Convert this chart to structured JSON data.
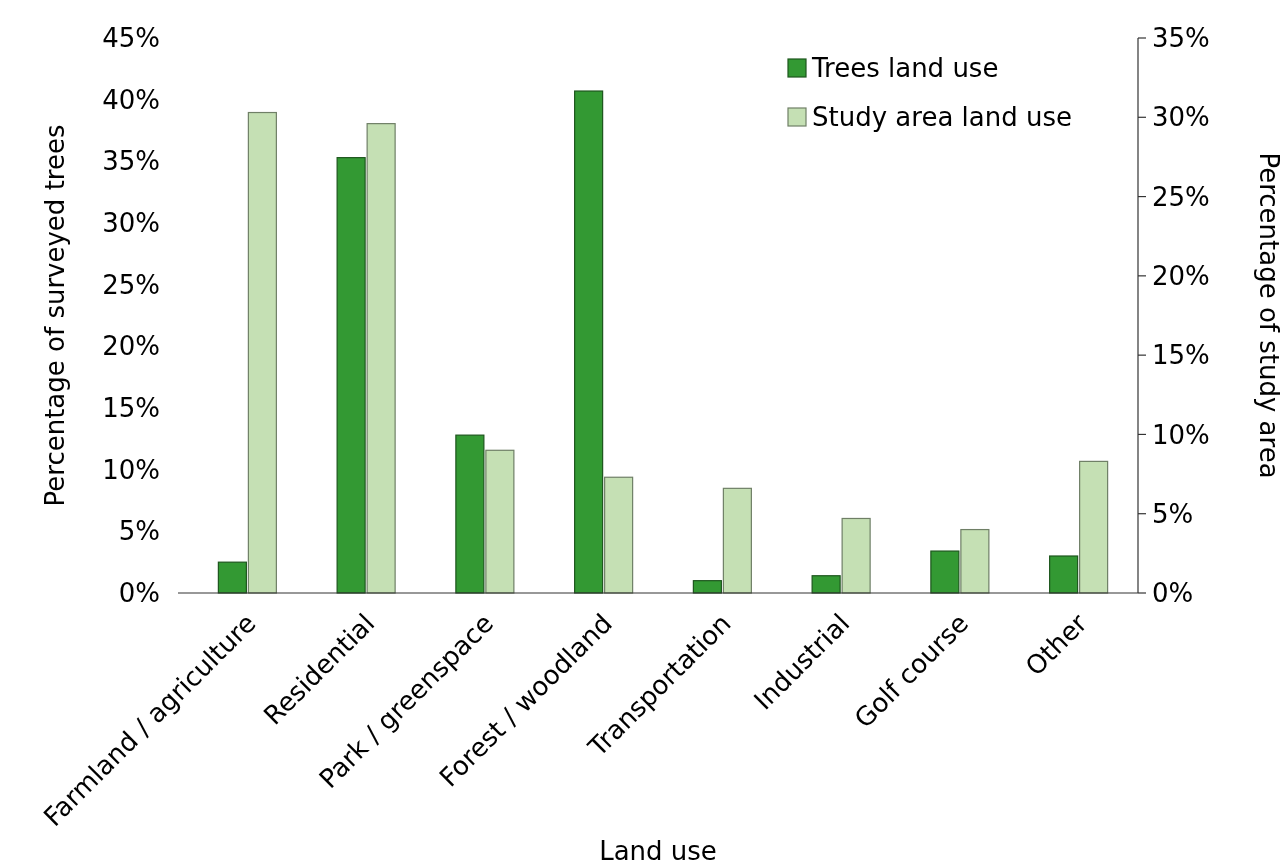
{
  "chart_data": {
    "type": "bar",
    "xlabel": "Land use",
    "ylabel": "Percentage of surveyed trees",
    "y2label": "Percentage of study area",
    "categories": [
      "Farmland / agriculture",
      "Residential",
      "Park / greenspace",
      "Forest / woodland",
      "Transportation",
      "Industrial",
      "Golf course",
      "Other"
    ],
    "series": [
      {
        "name": "Trees land use",
        "color": "#339933",
        "values": [
          2.5,
          35.3,
          12.8,
          40.7,
          1.0,
          1.4,
          3.4,
          3.0
        ]
      },
      {
        "name": "Study area land use",
        "color": "#c5e0b4",
        "axis": "y2",
        "values": [
          30.3,
          29.6,
          9.0,
          7.3,
          6.6,
          4.7,
          4.0,
          8.3
        ]
      }
    ],
    "ylim": [
      0,
      45
    ],
    "yticks": [
      {
        "value": 0,
        "label": "0%"
      },
      {
        "value": 5,
        "label": "5%"
      },
      {
        "value": 10,
        "label": "10%"
      },
      {
        "value": 15,
        "label": "15%"
      },
      {
        "value": 20,
        "label": "20%"
      },
      {
        "value": 25,
        "label": "25%"
      },
      {
        "value": 30,
        "label": "30%"
      },
      {
        "value": 35,
        "label": "35%"
      },
      {
        "value": 40,
        "label": "40%"
      },
      {
        "value": 45,
        "label": "45%"
      }
    ],
    "y2lim": [
      0,
      35
    ],
    "y2ticks": [
      {
        "value": 0,
        "label": "0%"
      },
      {
        "value": 5,
        "label": "5%"
      },
      {
        "value": 10,
        "label": "10%"
      },
      {
        "value": 15,
        "label": "15%"
      },
      {
        "value": 20,
        "label": "20%"
      },
      {
        "value": 25,
        "label": "25%"
      },
      {
        "value": 30,
        "label": "30%"
      },
      {
        "value": 35,
        "label": "35%"
      }
    ],
    "legend": "top right",
    "grid": false
  }
}
